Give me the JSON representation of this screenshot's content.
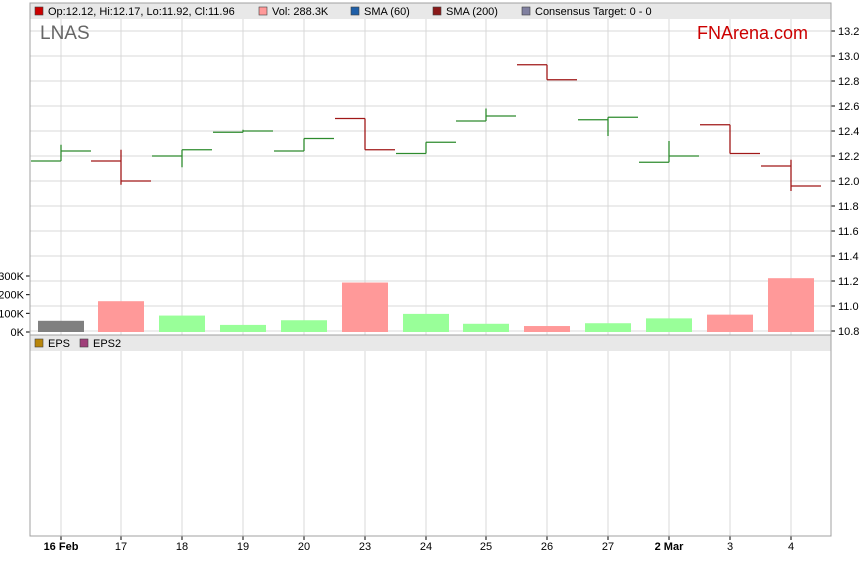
{
  "chart_data": {
    "type": "ohlc",
    "ticker": "LNAS",
    "brand": "FNArena.com",
    "legend": [
      {
        "text": "Op:12.12, Hi:12.17, Lo:11.92, Cl:11.96",
        "color": "#cc0000"
      },
      {
        "text": "Vol: 288.3K",
        "color": "#ff9999"
      },
      {
        "text": "SMA (60)",
        "color": "#1f5fa8"
      },
      {
        "text": "SMA (200)",
        "color": "#8b1a1a"
      },
      {
        "text": "Consensus Target: 0 - 0",
        "color": "#8080a0"
      }
    ],
    "lower_legend": [
      {
        "text": "EPS",
        "color": "#b8860b"
      },
      {
        "text": "EPS2",
        "color": "#a0407a"
      }
    ],
    "x_labels": [
      "16 Feb",
      "17",
      "18",
      "19",
      "20",
      "23",
      "24",
      "25",
      "26",
      "27",
      "2 Mar",
      "3",
      "4"
    ],
    "x_labels_bold": [
      "16 Feb",
      "2 Mar"
    ],
    "price_axis": {
      "min": 10.8,
      "max": 13.2,
      "ticks": [
        "13.2",
        "13.0",
        "12.8",
        "12.6",
        "12.4",
        "12.2",
        "12.0",
        "11.8",
        "11.6",
        "11.4",
        "11.2",
        "11.0",
        "10.8"
      ]
    },
    "volume_axis": {
      "min": 0,
      "max": 300000,
      "ticks": [
        "300K",
        "200K",
        "100K",
        "0K"
      ]
    },
    "ohlc": [
      {
        "o": 12.16,
        "h": 12.29,
        "l": 12.16,
        "c": 12.24
      },
      {
        "o": 12.16,
        "h": 12.25,
        "l": 11.97,
        "c": 12.0
      },
      {
        "o": 12.2,
        "h": 12.25,
        "l": 12.11,
        "c": 12.25
      },
      {
        "o": 12.39,
        "h": 12.41,
        "l": 12.39,
        "c": 12.4
      },
      {
        "o": 12.24,
        "h": 12.34,
        "l": 12.24,
        "c": 12.34
      },
      {
        "o": 12.5,
        "h": 12.5,
        "l": 12.25,
        "c": 12.25
      },
      {
        "o": 12.22,
        "h": 12.31,
        "l": 12.22,
        "c": 12.31
      },
      {
        "o": 12.48,
        "h": 12.58,
        "l": 12.48,
        "c": 12.52
      },
      {
        "o": 12.93,
        "h": 12.93,
        "l": 12.81,
        "c": 12.81
      },
      {
        "o": 12.49,
        "h": 12.51,
        "l": 12.36,
        "c": 12.51
      },
      {
        "o": 12.15,
        "h": 12.32,
        "l": 12.15,
        "c": 12.2
      },
      {
        "o": 12.45,
        "h": 12.45,
        "l": 12.22,
        "c": 12.22
      },
      {
        "o": 12.12,
        "h": 12.17,
        "l": 11.92,
        "c": 11.96
      }
    ],
    "volume": [
      60000,
      165000,
      88000,
      38000,
      63000,
      265000,
      97000,
      44000,
      32000,
      47000,
      73000,
      93000,
      288300
    ],
    "colors": {
      "up": "#2e8b2e",
      "down": "#a01818",
      "vol_up": "#99ff99",
      "vol_down": "#ff9999",
      "vol_first": "#808080",
      "grid": "#d8d8d8",
      "brand": "#cc0000"
    }
  }
}
